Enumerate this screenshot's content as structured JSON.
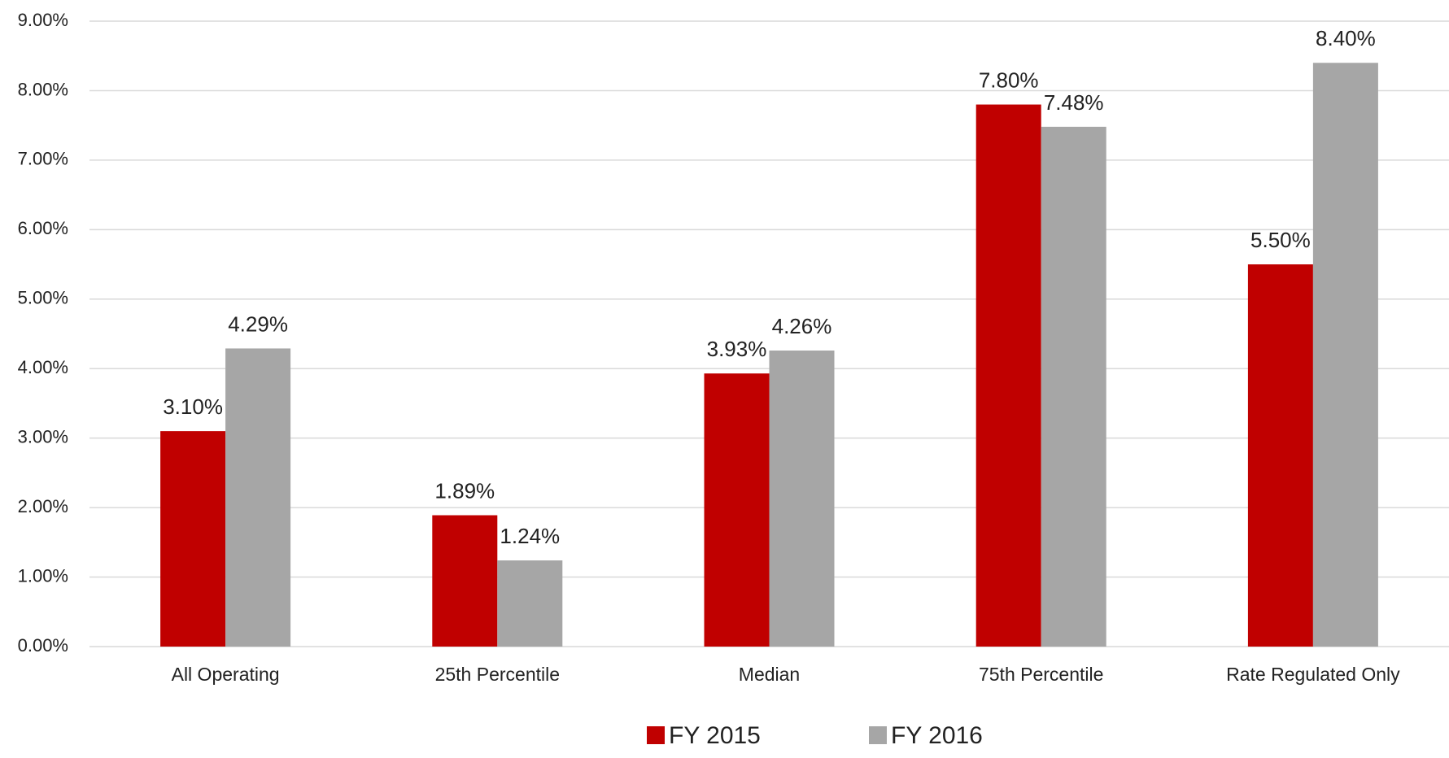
{
  "chart_data": {
    "type": "bar",
    "categories": [
      "All Operating",
      "25th Percentile",
      "Median",
      "75th Percentile",
      "Rate Regulated Only"
    ],
    "series": [
      {
        "name": "FY 2015",
        "color": "#c00000",
        "values": [
          3.1,
          1.89,
          3.93,
          7.8,
          5.5
        ],
        "value_labels": [
          "3.10%",
          "1.89%",
          "3.93%",
          "7.80%",
          "5.50%"
        ]
      },
      {
        "name": "FY 2016",
        "color": "#a6a6a6",
        "values": [
          4.29,
          1.24,
          4.26,
          7.48,
          8.4
        ],
        "value_labels": [
          "4.29%",
          "1.24%",
          "4.26%",
          "7.48%",
          "8.40%"
        ]
      }
    ],
    "ylim": [
      0,
      9
    ],
    "yticks": [
      {
        "value": 0,
        "label": "0.00%"
      },
      {
        "value": 1,
        "label": "1.00%"
      },
      {
        "value": 2,
        "label": "2.00%"
      },
      {
        "value": 3,
        "label": "3.00%"
      },
      {
        "value": 4,
        "label": "4.00%"
      },
      {
        "value": 5,
        "label": "5.00%"
      },
      {
        "value": 6,
        "label": "6.00%"
      },
      {
        "value": 7,
        "label": "7.00%"
      },
      {
        "value": 8,
        "label": "8.00%"
      },
      {
        "value": 9,
        "label": "9.00%"
      }
    ],
    "grid": true,
    "legend": "bottom"
  }
}
